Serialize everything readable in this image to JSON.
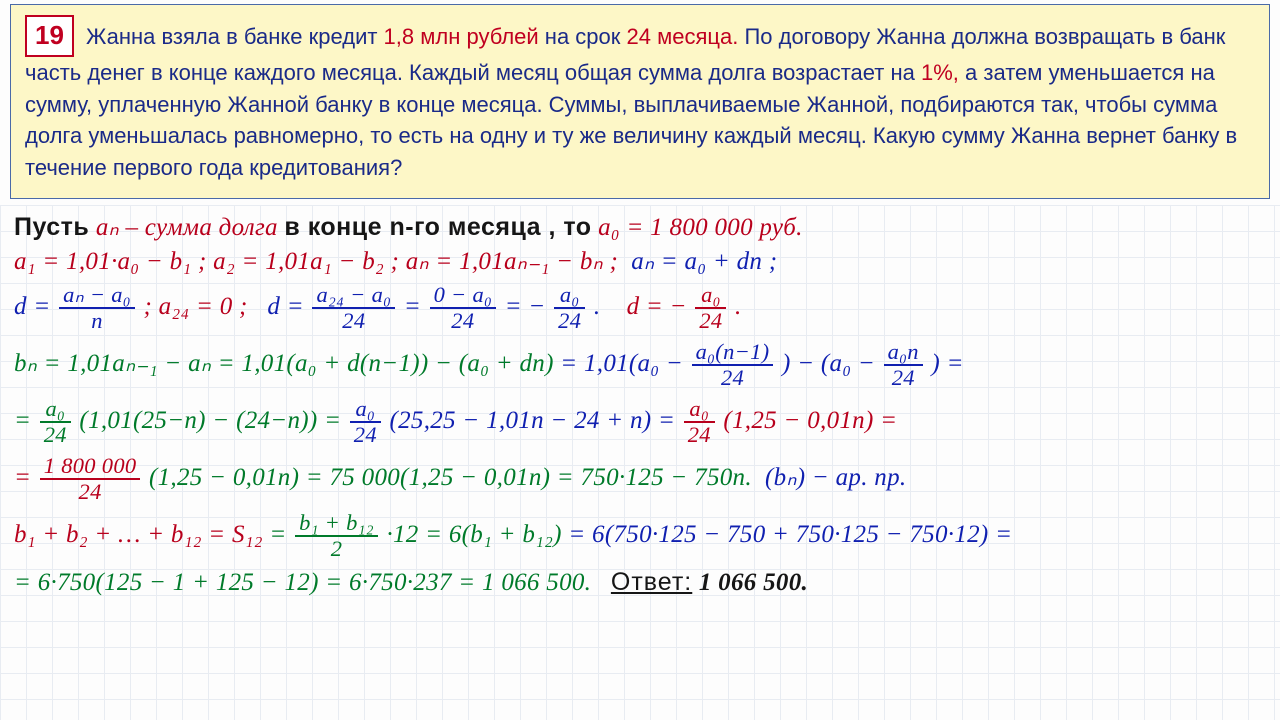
{
  "problem": {
    "number": "19",
    "text_parts": {
      "p1a": "Жанна взяла в банке кредит ",
      "amount": "1,8 млн рублей",
      "p1b": " на срок ",
      "months": "24 месяца.",
      "p1c": "  По договору  Жанна должна возвращать в банк часть денег в конце каждого месяца. Каждый месяц общая сумма долга возрастает на ",
      "rate": "1%,",
      "p1d": " а затем уменьшается на сумму, уплаченную Жанной банку в конце месяца. Суммы, выплачиваемые Жанной, подбираются так, чтобы сумма долга уменьшалась равномерно, то есть на одну и ту же величину каждый месяц.  Какую сумму Жанна вернет банку в течение первого года кредитования?"
    }
  },
  "work": {
    "l1_a": "Пусть",
    "l1_b": "aₙ – сумма долга",
    "l1_c": "в конце n-го месяца , то",
    "l1_d": "a₀ = 1 800 000 руб.",
    "l2_a": "a₁ = 1,01·a₀ − b₁ ;  a₂ = 1,01a₁ − b₂ ;  aₙ = 1,01aₙ₋₁ − bₙ ;",
    "l2_b": "aₙ = a₀ + dn ;",
    "l3_d": "d =",
    "l3_fr_nu": "aₙ − a₀",
    "l3_fr_de": "n",
    "l3_a24": ";  a₂₄ = 0 ;",
    "l3_d2": "d =",
    "l3_fr2_nu": "a₂₄ − a₀",
    "l3_fr2_de": "24",
    "l3_eq": " = ",
    "l3_fr3_nu": "0 − a₀",
    "l3_fr3_de": "24",
    "l3_fr4_nu": "a₀",
    "l3_fr4_de": "24",
    "l3_minus": " = − ",
    "l3_dot": ".",
    "l3_final": "d = − ",
    "l4_a": "bₙ = 1,01aₙ₋₁ − aₙ = 1,01(a₀ + d(n−1)) − (a₀ + dn)",
    "l4_b": " = 1,01(a₀ − ",
    "l4_fr1_nu": "a₀(n−1)",
    "l4_fr1_de": "24",
    "l4_c": ") − (a₀ − ",
    "l4_fr2_nu": "a₀n",
    "l4_fr2_de": "24",
    "l4_d": ") =",
    "l5_a": "= ",
    "l5_fr_nu": "a₀",
    "l5_fr_de": "24",
    "l5_b": "(1,01(25−n) − (24−n)) = ",
    "l5_c": "(25,25 − 1,01n − 24 + n) = ",
    "l5_d": "(1,25 − 0,01n) =",
    "l6_a": "= ",
    "l6_fr_nu": "1 800 000",
    "l6_fr_de": "24",
    "l6_b": "(1,25 − 0,01n) = 75 000(1,25 − 0,01n) = 750·125 − 750n.",
    "l6_c": "(bₙ) − ар. пр.",
    "l7_a": "b₁ + b₂ + … + b₁₂ = S₁₂",
    "l7_b": " = ",
    "l7_fr_nu": "b₁ + b₁₂",
    "l7_fr_de": "2",
    "l7_c": "·12 = 6(b₁ + b₁₂)",
    "l7_d": " = 6(750·125 − 750 + 750·125 − 750·12) =",
    "l8_a": "= 6·750(125 − 1 + 125 − 12) = 6·750·237 = 1 066 500.",
    "l8_ans_label": "Ответ:",
    "l8_ans_val": " 1 066 500."
  },
  "colors": {
    "problem_bg": "#fdf7c7",
    "problem_text": "#1a2a88",
    "red": "#c00020",
    "blue": "#1020b0",
    "green": "#007a2a",
    "black": "#161616",
    "grid": "#e8ecf2"
  }
}
